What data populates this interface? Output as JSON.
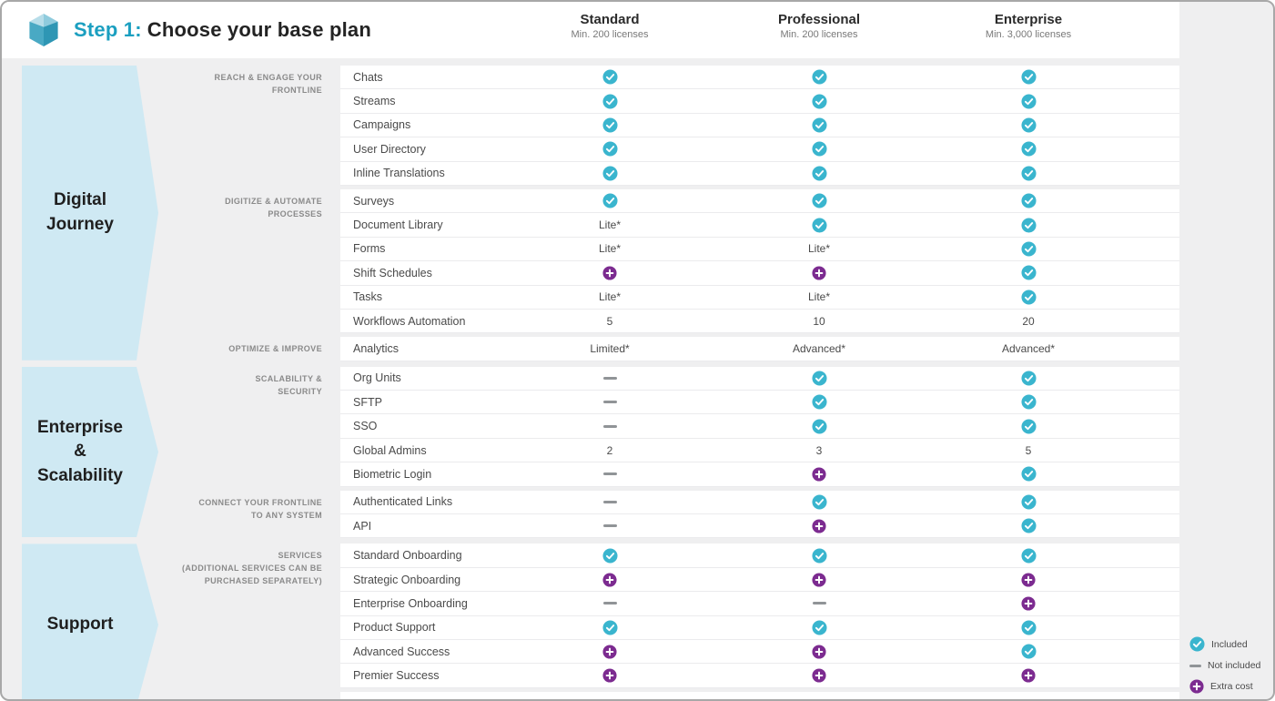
{
  "header": {
    "step_label": "Step 1:",
    "title": "Choose your base plan",
    "plans": [
      {
        "name": "Standard",
        "sub": "Min. 200 licenses"
      },
      {
        "name": "Professional",
        "sub": "Min. 200 licenses"
      },
      {
        "name": "Enterprise",
        "sub": "Min. 3,000 licenses"
      }
    ]
  },
  "sections": [
    {
      "id": "digital-journey",
      "title_lines": [
        "Digital",
        "Journey"
      ],
      "groups": [
        {
          "label_lines": [
            "REACH & ENGAGE YOUR",
            "FRONTLINE"
          ],
          "rows": [
            {
              "feature": "Chats",
              "values": [
                "check",
                "check",
                "check"
              ]
            },
            {
              "feature": "Streams",
              "values": [
                "check",
                "check",
                "check"
              ]
            },
            {
              "feature": "Campaigns",
              "values": [
                "check",
                "check",
                "check"
              ]
            },
            {
              "feature": "User Directory",
              "values": [
                "check",
                "check",
                "check"
              ]
            },
            {
              "feature": "Inline Translations",
              "values": [
                "check",
                "check",
                "check"
              ]
            }
          ]
        },
        {
          "label_lines": [
            "DIGITIZE & AUTOMATE",
            "PROCESSES"
          ],
          "rows": [
            {
              "feature": "Surveys",
              "values": [
                "check",
                "check",
                "check"
              ]
            },
            {
              "feature": "Document Library",
              "values": [
                "Lite*",
                "check",
                "check"
              ]
            },
            {
              "feature": "Forms",
              "values": [
                "Lite*",
                "Lite*",
                "check"
              ]
            },
            {
              "feature": "Shift Schedules",
              "values": [
                "plus",
                "plus",
                "check"
              ]
            },
            {
              "feature": "Tasks",
              "values": [
                "Lite*",
                "Lite*",
                "check"
              ]
            },
            {
              "feature": "Workflows Automation",
              "values": [
                "5",
                "10",
                "20"
              ]
            }
          ]
        },
        {
          "label_lines": [
            "OPTIMIZE & IMPROVE"
          ],
          "rows": [
            {
              "feature": "Analytics",
              "values": [
                "Limited*",
                "Advanced*",
                "Advanced*"
              ]
            }
          ]
        }
      ]
    },
    {
      "id": "enterprise-scalability",
      "title_lines": [
        "Enterprise",
        "&",
        "Scalability"
      ],
      "groups": [
        {
          "label_lines": [
            "SCALABILITY &",
            "SECURITY"
          ],
          "rows": [
            {
              "feature": "Org Units",
              "values": [
                "dash",
                "check",
                "check"
              ]
            },
            {
              "feature": "SFTP",
              "values": [
                "dash",
                "check",
                "check"
              ]
            },
            {
              "feature": "SSO",
              "values": [
                "dash",
                "check",
                "check"
              ]
            },
            {
              "feature": "Global Admins",
              "values": [
                "2",
                "3",
                "5"
              ]
            },
            {
              "feature": "Biometric Login",
              "values": [
                "dash",
                "plus",
                "check"
              ]
            }
          ]
        },
        {
          "label_lines": [
            "CONNECT YOUR FRONTLINE",
            "TO ANY SYSTEM"
          ],
          "rows": [
            {
              "feature": "Authenticated Links",
              "values": [
                "dash",
                "check",
                "check"
              ]
            },
            {
              "feature": "API",
              "values": [
                "dash",
                "plus",
                "check"
              ]
            }
          ]
        }
      ]
    },
    {
      "id": "support",
      "title_lines": [
        "Support"
      ],
      "groups": [
        {
          "label_lines": [
            "SERVICES",
            "(ADDITIONAL SERVICES CAN BE",
            "PURCHASED SEPARATELY)"
          ],
          "rows": [
            {
              "feature": "Standard Onboarding",
              "values": [
                "check",
                "check",
                "check"
              ]
            },
            {
              "feature": "Strategic Onboarding",
              "values": [
                "plus",
                "plus",
                "plus"
              ]
            },
            {
              "feature": "Enterprise Onboarding",
              "values": [
                "dash",
                "dash",
                "plus"
              ]
            },
            {
              "feature": "Product Support",
              "values": [
                "check",
                "check",
                "check"
              ]
            },
            {
              "feature": "Advanced Success",
              "values": [
                "plus",
                "plus",
                "check"
              ]
            },
            {
              "feature": "Premier Success",
              "values": [
                "plus",
                "plus",
                "plus"
              ]
            }
          ]
        }
      ]
    }
  ],
  "legend": [
    {
      "icon": "check",
      "label": "Included"
    },
    {
      "icon": "dash",
      "label": "Not included"
    },
    {
      "icon": "plus",
      "label": "Extra cost"
    }
  ],
  "colors": {
    "accent_teal": "#1b9fc0",
    "included_check": "#3ab5ce",
    "extra_cost_plus": "#7c2b90",
    "not_included_dash": "#909497",
    "section_arrow_bg": "#cfe9f3"
  }
}
